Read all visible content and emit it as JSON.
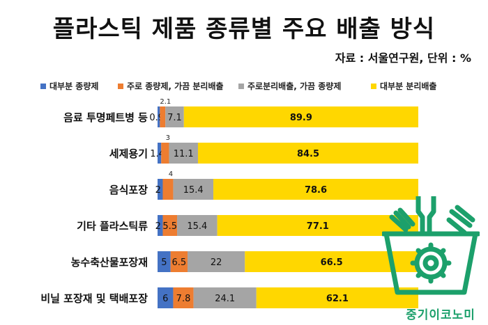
{
  "header": {
    "title": "플라스틱 제품 종류별 주요 배출 방식",
    "source": "자료 : 서울연구원, 단위 : %"
  },
  "brand": {
    "text": "중기이코노미",
    "color": "#1ca06b"
  },
  "chart_data": {
    "type": "bar",
    "orientation": "horizontal",
    "stacked": true,
    "categories": [
      "음료 투명페트병 등",
      "세제용기",
      "음식포장",
      "기타 플라스틱류",
      "농수축산물포장재",
      "비닐 포장재 및 택배포장"
    ],
    "series": [
      {
        "name": "대부분 종량제",
        "color": "#4472c4",
        "values": [
          0.9,
          1.4,
          2,
          2,
          5,
          6
        ]
      },
      {
        "name": "주로 종량제, 가끔 분리배출",
        "color": "#ed7d31",
        "values": [
          2.1,
          3,
          4,
          5.5,
          6.5,
          7.8
        ]
      },
      {
        "name": "주로분리배출, 가끔 종량제",
        "color": "#a5a5a5",
        "values": [
          7.1,
          11.1,
          15.4,
          15.4,
          22,
          24.1
        ]
      },
      {
        "name": "대부분 분리배출",
        "color": "#ffd700",
        "values": [
          89.9,
          84.5,
          78.6,
          77.1,
          66.5,
          62.1
        ]
      }
    ],
    "data_labels": [
      [
        "0.9",
        "2.1",
        "7.1",
        "89.9"
      ],
      [
        "1.4",
        "3",
        "11.1",
        "84.5"
      ],
      [
        "2",
        "4",
        "15.4",
        "78.6"
      ],
      [
        "2",
        "5.5",
        "15.4",
        "77.1"
      ],
      [
        "5",
        "6.5",
        "22",
        "66.5"
      ],
      [
        "6",
        "7.8",
        "24.1",
        "62.1"
      ]
    ],
    "xlim": [
      0,
      100
    ],
    "legend_position": "top",
    "grid": false
  }
}
